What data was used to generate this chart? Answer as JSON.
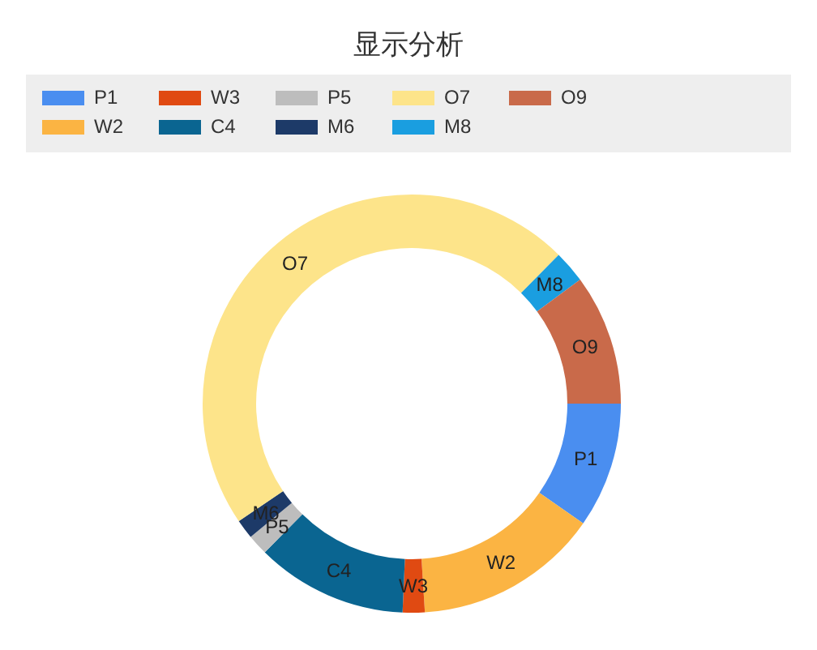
{
  "chart_data": {
    "type": "donut",
    "title": "显示分析",
    "categories": [
      "P1",
      "W2",
      "W3",
      "C4",
      "P5",
      "M6",
      "O7",
      "M8",
      "O9"
    ],
    "values": [
      9.7,
      14.3,
      1.7,
      11.7,
      1.6,
      1.5,
      46.9,
      2.5,
      10.1
    ],
    "colors": [
      "#4a8ef0",
      "#fbb443",
      "#e04a12",
      "#0a6591",
      "#bdbdbd",
      "#1d3a68",
      "#fde48a",
      "#1a9ee0",
      "#c96a4a"
    ],
    "legend": "top"
  }
}
